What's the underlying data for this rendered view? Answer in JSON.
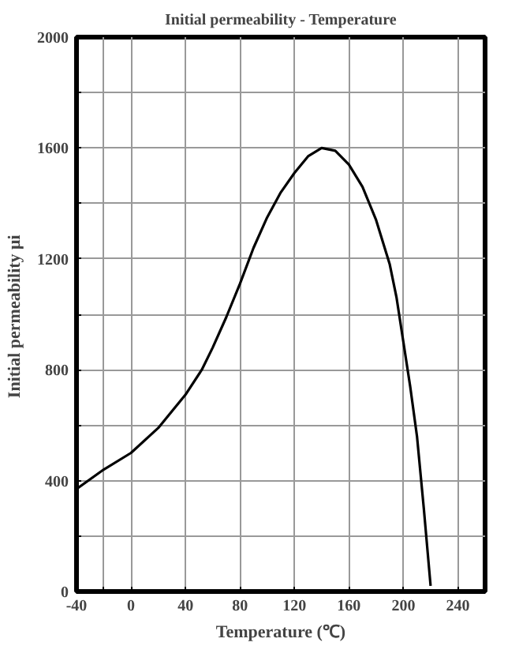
{
  "chart_data": {
    "type": "line",
    "title": "Initial permeability - Temperature",
    "xlabel": "Temperature (℃)",
    "ylabel": "Initial permeability  μi",
    "x": [
      -40,
      -20,
      0,
      20,
      40,
      52,
      60,
      70,
      80,
      90,
      100,
      110,
      120,
      130,
      140,
      150,
      160,
      170,
      180,
      190,
      195,
      200,
      205,
      210,
      215,
      220
    ],
    "series": [
      {
        "color": "#000000",
        "values": [
          370,
          440,
          500,
          590,
          710,
          800,
          880,
          990,
          1110,
          1240,
          1350,
          1440,
          1510,
          1570,
          1600,
          1590,
          1540,
          1460,
          1340,
          1180,
          1060,
          900,
          740,
          560,
          300,
          20
        ]
      }
    ],
    "xlim": [
      -40,
      260
    ],
    "ylim": [
      0,
      2000
    ],
    "xticks": [
      -40,
      {
        "value": -20,
        "label": null
      },
      0,
      40,
      80,
      120,
      160,
      200,
      240
    ],
    "yticks": [
      0,
      {
        "value": 200,
        "label": null
      },
      400,
      {
        "value": 600,
        "label": null
      },
      800,
      {
        "value": 1000,
        "label": null
      },
      1200,
      {
        "value": 1400,
        "label": null
      },
      1600,
      {
        "value": 1800,
        "label": null
      },
      2000
    ],
    "grid": true,
    "marker": "none",
    "line_style": "solid"
  }
}
